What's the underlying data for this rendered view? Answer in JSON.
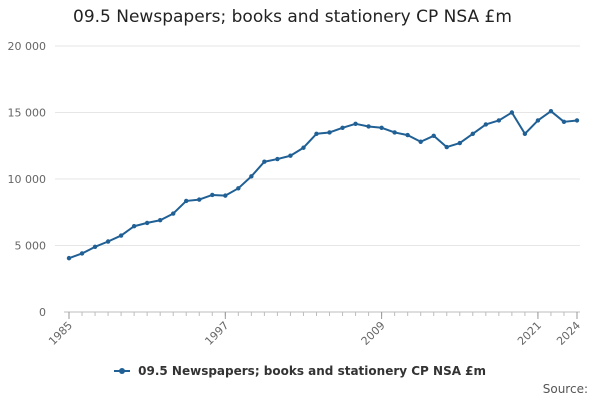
{
  "chart_data": {
    "type": "line",
    "title": "09.5 Newspapers; books and stationery CP NSA £m",
    "xlabel": "",
    "ylabel": "",
    "x": [
      1985,
      1986,
      1987,
      1988,
      1989,
      1990,
      1991,
      1992,
      1993,
      1994,
      1995,
      1996,
      1997,
      1998,
      1999,
      2000,
      2001,
      2002,
      2003,
      2004,
      2005,
      2006,
      2007,
      2008,
      2009,
      2010,
      2011,
      2012,
      2013,
      2014,
      2015,
      2016,
      2017,
      2018,
      2019,
      2020,
      2021,
      2022,
      2023,
      2024
    ],
    "xlim": [
      1985,
      2024
    ],
    "ylim": [
      0,
      20000
    ],
    "yticks": [
      0,
      5000,
      10000,
      15000,
      20000
    ],
    "ytick_labels": [
      "0",
      "5 000",
      "10 000",
      "15 000",
      "20 000"
    ],
    "xticks": [
      1985,
      1997,
      2009,
      2021,
      2024
    ],
    "xtick_labels": [
      "1985",
      "1997",
      "2009",
      "2021",
      "2024"
    ],
    "grid": true,
    "legend_position": "bottom",
    "series": [
      {
        "name": "09.5 Newspapers; books and stationery CP NSA £m",
        "color": "#206095",
        "values": [
          4050,
          4400,
          4900,
          5300,
          5750,
          6450,
          6700,
          6900,
          7400,
          8350,
          8450,
          8800,
          8750,
          9300,
          10200,
          11300,
          11500,
          11750,
          12350,
          13400,
          13500,
          13850,
          14150,
          13950,
          13850,
          13500,
          13300,
          12800,
          13250,
          12400,
          12700,
          13400,
          14100,
          14400,
          15000,
          13400,
          14400,
          15100,
          14300,
          14400
        ]
      }
    ]
  },
  "legend": {
    "label": "09.5 Newspapers; books and stationery CP NSA £m"
  },
  "footer": {
    "source_label": "Source:"
  }
}
